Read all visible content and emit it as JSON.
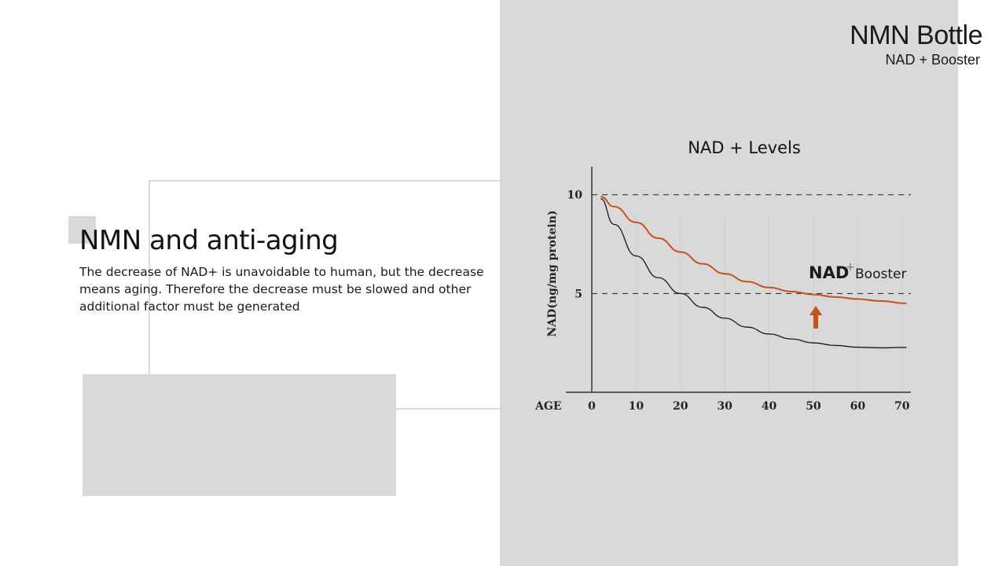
{
  "slide": {
    "title": "NMN and anti-aging",
    "body": "The decrease of NAD+ is unavoidable to human, but the decrease means aging. Therefore the decrease must be slowed and other additional factor must be generated"
  },
  "brand": {
    "name": "NMN Bottle",
    "subtitle": "NAD + Booster"
  },
  "chart_data": {
    "type": "line",
    "title": "NAD + Levels",
    "xlabel": "AGE",
    "ylabel": "NAD(ng/mg protein)",
    "x_ticks": [
      0,
      10,
      20,
      30,
      40,
      50,
      60,
      70
    ],
    "y_ticks": [
      5,
      10
    ],
    "reference_lines": [
      5,
      10
    ],
    "xlim": [
      0,
      72
    ],
    "ylim": [
      0,
      11.5
    ],
    "grid": false,
    "series": [
      {
        "color": "#c8501c",
        "x": [
          2,
          5,
          10,
          15,
          20,
          25,
          30,
          35,
          40,
          45,
          50,
          55,
          60,
          65,
          71
        ],
        "y": [
          9.9,
          9.4,
          8.6,
          7.8,
          7.1,
          6.5,
          6.0,
          5.6,
          5.3,
          5.1,
          4.95,
          4.82,
          4.72,
          4.62,
          4.5
        ]
      },
      {
        "color": "#1a1a1a",
        "x": [
          2,
          5,
          10,
          15,
          20,
          25,
          30,
          35,
          40,
          45,
          50,
          55,
          60,
          65,
          71
        ],
        "y": [
          9.8,
          8.5,
          6.9,
          5.8,
          5.0,
          4.3,
          3.75,
          3.3,
          2.95,
          2.7,
          2.5,
          2.37,
          2.28,
          2.25,
          2.27
        ]
      }
    ],
    "annotation": {
      "label": "NAD",
      "plus": "+",
      "suffix": "Booster",
      "arrow": "up-arrow",
      "arrow_color": "#c8501c"
    }
  }
}
